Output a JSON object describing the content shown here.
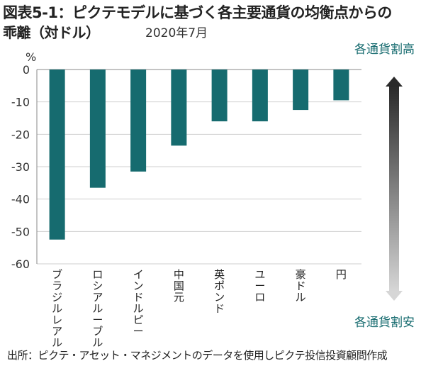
{
  "title": {
    "line1": "図表5-1：ピクテモデルに基づく各主要通貨の均衡点からの",
    "line2": "乖離（対ドル）",
    "date": "2020年7月"
  },
  "source": "出所：ピクテ・アセット・マネジメントのデータを使用しピクテ投信投資顧問作成",
  "colors": {
    "bar": "#166b6f",
    "annotation": "#166b6f",
    "grid": "#cfcfcf",
    "axis": "#888888"
  },
  "chart_data": {
    "type": "bar",
    "unit_label": "%",
    "categories": [
      "ブラジルレアル",
      "ロシアルーブル",
      "インドルピー",
      "中国元",
      "英ポンド",
      "ユーロ",
      "豪ドル",
      "円"
    ],
    "values": [
      -52.5,
      -36.5,
      -31.5,
      -23.5,
      -16,
      -16,
      -12.5,
      -9.5
    ],
    "ylim": [
      -60,
      0
    ],
    "yticks": [
      0,
      -10,
      -20,
      -30,
      -40,
      -50,
      -60
    ],
    "grid": true,
    "annotations": {
      "top": "各通貨割高",
      "bottom": "各通貨割安"
    }
  }
}
